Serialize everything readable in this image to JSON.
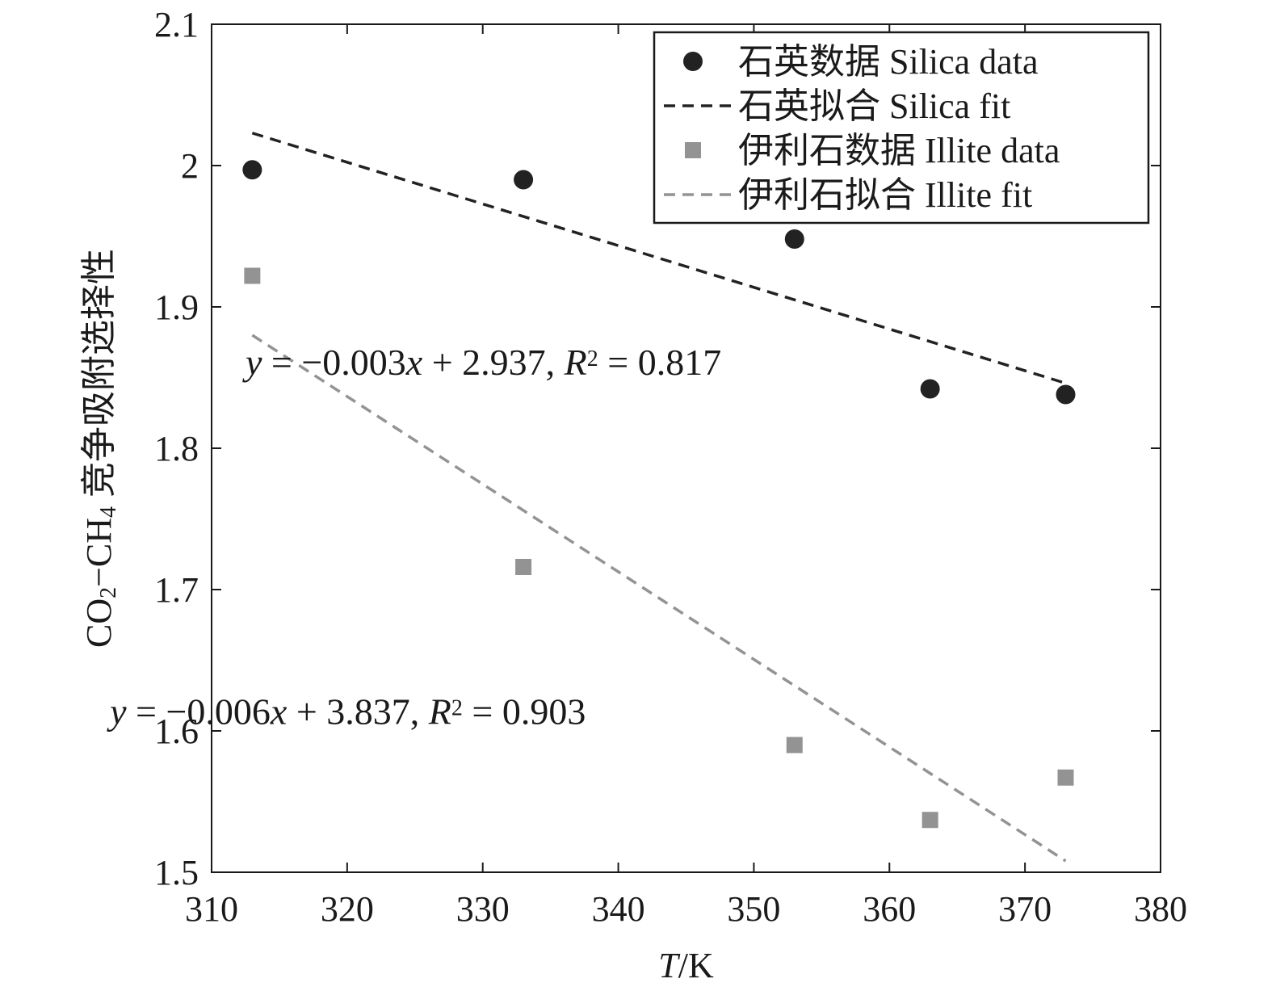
{
  "chart_data": {
    "type": "scatter",
    "xlabel": {
      "italic": "T",
      "rest": "/K"
    },
    "ylabel": {
      "co2": "CO",
      "co2_sub": "2",
      "dash": "−CH",
      "ch4_sub": "4",
      "rest": " 竞争吸附选择性"
    },
    "xlim": [
      310,
      380
    ],
    "ylim": [
      1.5,
      2.1
    ],
    "xticks": [
      "310",
      "320",
      "330",
      "340",
      "350",
      "360",
      "370",
      "380"
    ],
    "yticks": [
      "1.5",
      "1.6",
      "1.7",
      "1.8",
      "1.9",
      "2",
      "2.1"
    ],
    "grid": false,
    "legend_position": "top-right",
    "series": [
      {
        "name": "石英数据 Silica data",
        "kind": "scatter",
        "marker": "circle",
        "color": "#222222",
        "x": [
          313,
          333,
          353,
          363,
          373
        ],
        "y": [
          1.997,
          1.99,
          1.948,
          1.842,
          1.838
        ]
      },
      {
        "name": "石英拟合 Silica fit",
        "kind": "line",
        "style": "dashed",
        "color": "#222222",
        "x": [
          313,
          373
        ],
        "y": [
          2.023,
          1.846
        ]
      },
      {
        "name": "伊利石数据 Illite data",
        "kind": "scatter",
        "marker": "square",
        "color": "#939393",
        "x": [
          313,
          333,
          353,
          363,
          373
        ],
        "y": [
          1.922,
          1.716,
          1.59,
          1.537,
          1.567
        ]
      },
      {
        "name": "伊利石拟合 Illite fit",
        "kind": "line",
        "style": "dashed",
        "color": "#939393",
        "x": [
          313,
          373
        ],
        "y": [
          1.88,
          1.508
        ]
      }
    ],
    "annotations": [
      {
        "text": "y = −0.003x + 2.937, R² = 0.817",
        "x": 312.5,
        "y": 1.852
      },
      {
        "text": "y = −0.006x + 3.837, R² = 0.903",
        "x": 302.5,
        "y": 1.605
      }
    ]
  }
}
